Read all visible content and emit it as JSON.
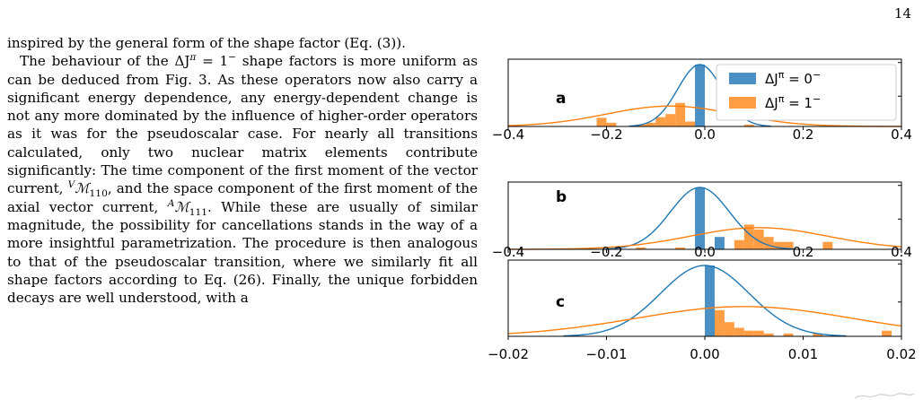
{
  "page": {
    "number": "14"
  },
  "body": {
    "p1": "inspired by the general form of the shape factor (Eq. (3)).",
    "p2_a": "The behaviour of the ΔJ",
    "p2_a_sup": "π",
    "p2_b": " = 1",
    "p2_b_sup": "−",
    "p2_c": " shape factors is more uniform as can be deduced from Fig. 3. As these operators now also carry a significant energy dependence, any energy-dependent change is not any more dominated by the influence of higher-order operators as it was for the pseudoscalar case. For nearly all transitions calculated, only two nuclear matrix elements contribute significantly: The time component of the first moment of the vector current, ",
    "p2_d_sup": "V",
    "p2_d": "ℳ",
    "p2_d_sub": "110",
    "p2_e": ", and the space component of the first moment of the axial vector current, ",
    "p2_f_sup": "A",
    "p2_f": "ℳ",
    "p2_f_sub": "111",
    "p2_g": ". While these are usually of similar magnitude, the possibility for cancellations stands in the way of a more insightful parametrization. The procedure is then analogous to that of the pseudoscalar transition, where we similarly fit all shape factors according to Eq. (26). Finally, the unique forbidden decays are well understood, with a"
  },
  "chart_data": [
    {
      "type": "bar",
      "panel": "a",
      "xlim": [
        -0.4,
        0.4
      ],
      "xticks": [
        "−0.4",
        "−0.2",
        "0.0",
        "0.2",
        "0.4"
      ],
      "legend_position": "top-right",
      "series": [
        {
          "name": "ΔJ^π = 0^−",
          "color": "#1f77b4",
          "bins": [
            [
              -0.02,
              0.0,
              1.0
            ]
          ],
          "fit": {
            "mu": -0.01,
            "sigma": 0.045,
            "peak": 1.0
          }
        },
        {
          "name": "ΔJ^π = 1^−",
          "color": "#ff7f0e",
          "bins": [
            [
              -0.22,
              -0.2,
              0.14
            ],
            [
              -0.2,
              -0.18,
              0.06
            ],
            [
              -0.14,
              -0.12,
              0.03
            ],
            [
              -0.12,
              -0.1,
              0.06
            ],
            [
              -0.1,
              -0.08,
              0.15
            ],
            [
              -0.08,
              -0.06,
              0.2
            ],
            [
              -0.06,
              -0.04,
              0.38
            ],
            [
              -0.04,
              -0.02,
              0.08
            ],
            [
              0.08,
              0.1,
              0.03
            ]
          ],
          "fit": {
            "mu": -0.07,
            "sigma": 0.13,
            "peak": 0.33
          }
        }
      ]
    },
    {
      "type": "bar",
      "panel": "b",
      "xlim": [
        -0.4,
        0.4
      ],
      "xticks": [
        "−0.4",
        "−0.2",
        "0.0",
        "0.2",
        "0.4"
      ],
      "series": [
        {
          "name": "ΔJ^π = 0^−",
          "color": "#1f77b4",
          "bins": [
            [
              -0.02,
              0.0,
              1.0
            ],
            [
              0.02,
              0.04,
              0.2
            ]
          ],
          "fit": {
            "mu": -0.01,
            "sigma": 0.06,
            "peak": 1.0
          }
        },
        {
          "name": "ΔJ^π = 1^−",
          "color": "#ff7f0e",
          "bins": [
            [
              -0.14,
              -0.12,
              0.03
            ],
            [
              -0.06,
              -0.04,
              0.03
            ],
            [
              -0.02,
              0.0,
              0.18
            ],
            [
              0.06,
              0.08,
              0.15
            ],
            [
              0.08,
              0.1,
              0.4
            ],
            [
              0.1,
              0.12,
              0.32
            ],
            [
              0.12,
              0.14,
              0.2
            ],
            [
              0.14,
              0.16,
              0.12
            ],
            [
              0.16,
              0.18,
              0.12
            ],
            [
              0.24,
              0.26,
              0.12
            ]
          ],
          "fit": {
            "mu": 0.11,
            "sigma": 0.14,
            "peak": 0.35
          }
        }
      ]
    },
    {
      "type": "bar",
      "panel": "c",
      "xlim": [
        -0.02,
        0.02
      ],
      "xticks": [
        "−0.02",
        "−0.01",
        "0.00",
        "0.01",
        "0.02"
      ],
      "series": [
        {
          "name": "ΔJ^π = 0^−",
          "color": "#1f77b4",
          "bins": [
            [
              0.0,
              0.001,
              1.0
            ]
          ],
          "fit": {
            "mu": 0.0,
            "sigma": 0.0045,
            "peak": 1.0
          }
        },
        {
          "name": "ΔJ^π = 1^−",
          "color": "#ff7f0e",
          "bins": [
            [
              0.0,
              0.001,
              0.55
            ],
            [
              0.001,
              0.002,
              0.37
            ],
            [
              0.002,
              0.003,
              0.2
            ],
            [
              0.003,
              0.004,
              0.12
            ],
            [
              0.004,
              0.005,
              0.08
            ],
            [
              0.005,
              0.006,
              0.08
            ],
            [
              0.006,
              0.007,
              0.04
            ],
            [
              0.008,
              0.009,
              0.04
            ],
            [
              0.011,
              0.012,
              0.04
            ],
            [
              0.018,
              0.019,
              0.08
            ]
          ],
          "fit": {
            "mu": 0.004,
            "sigma": 0.011,
            "peak": 0.42
          }
        }
      ]
    }
  ],
  "legend": {
    "entry0_base": "ΔJ",
    "entry0_sup": "π",
    "entry0_eq": " = 0",
    "entry0_sup2": "−",
    "entry1_base": "ΔJ",
    "entry1_sup": "π",
    "entry1_eq": " = 1",
    "entry1_sup2": "−"
  },
  "colors": {
    "blue": "#1f77b4",
    "orange": "#ff7f0e",
    "bar_blue": "#4a90c4",
    "bar_orange": "#ff9d45"
  }
}
